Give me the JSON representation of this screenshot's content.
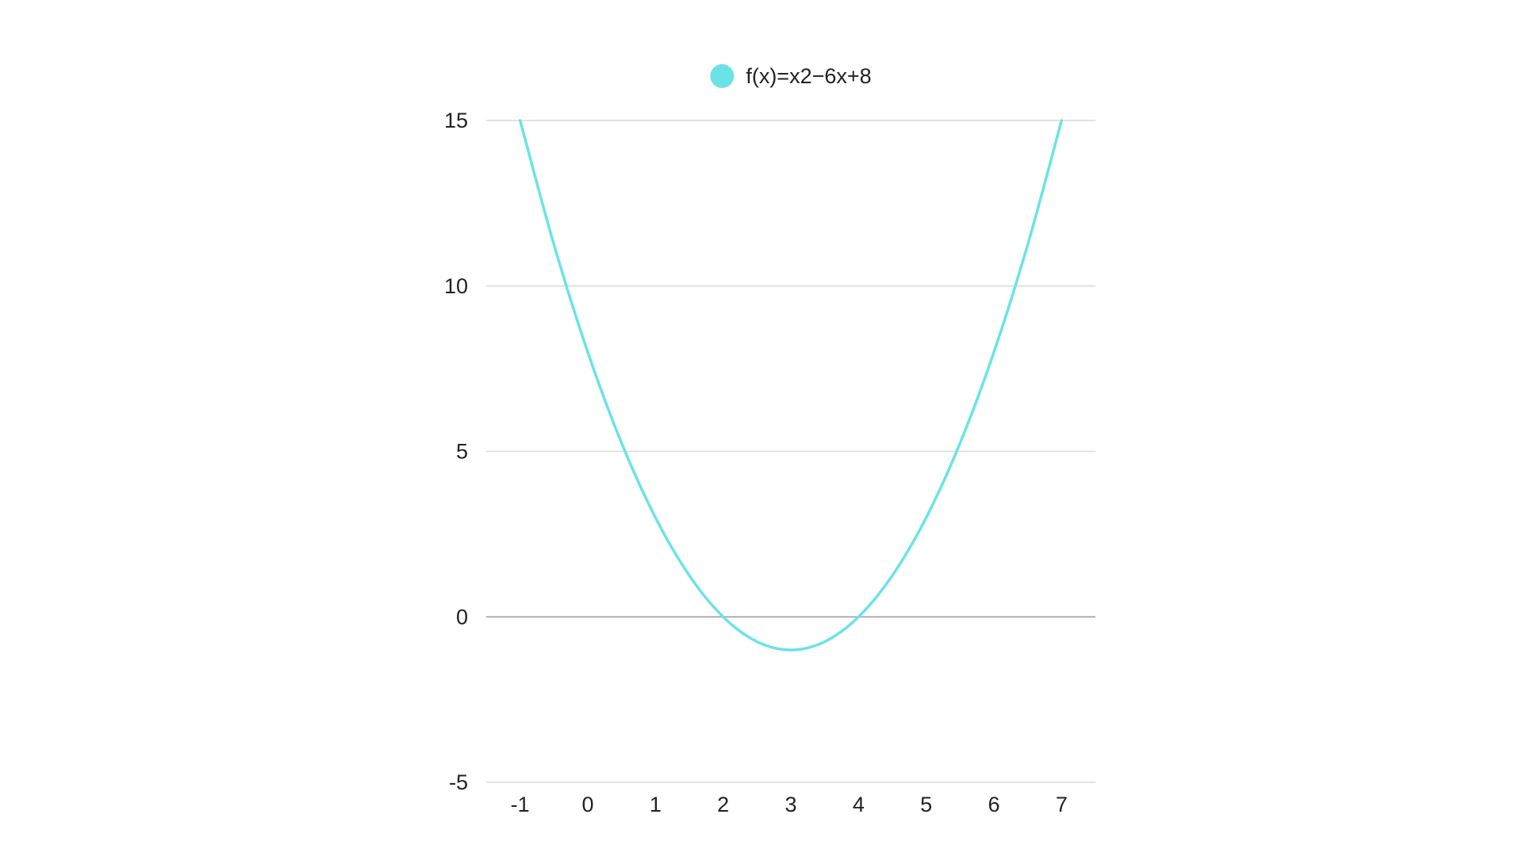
{
  "chart_data": {
    "type": "line",
    "title": "",
    "xlabel": "",
    "ylabel": "",
    "xlim": [
      -1.5,
      7.5
    ],
    "ylim": [
      -5,
      15
    ],
    "x_ticks": [
      -1,
      0,
      1,
      2,
      3,
      4,
      5,
      6,
      7
    ],
    "y_ticks": [
      -5,
      0,
      5,
      10,
      15
    ],
    "grid": true,
    "legend_position": "top-center",
    "series": [
      {
        "name": "f(x)=x2−6x+8",
        "color": "#6be3e6",
        "x": [
          -1,
          -0.5,
          0,
          0.5,
          1,
          1.5,
          2,
          2.5,
          3,
          3.5,
          4,
          4.5,
          5,
          5.5,
          6,
          6.5,
          7
        ],
        "y": [
          15,
          11.25,
          8,
          5.25,
          3,
          1.25,
          0,
          -0.75,
          -1,
          -0.75,
          0,
          1.25,
          3,
          5.25,
          8,
          11.25,
          15
        ]
      }
    ]
  }
}
